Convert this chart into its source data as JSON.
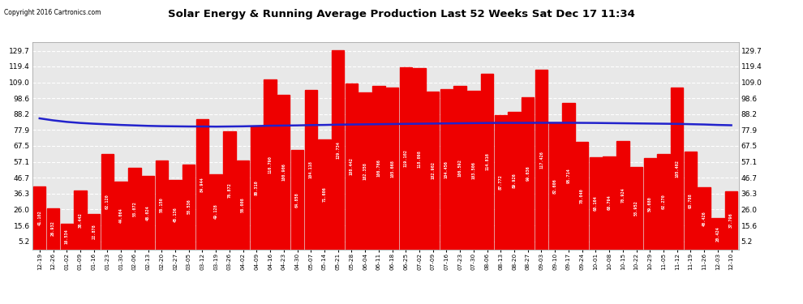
{
  "title": "Solar Energy & Running Average Production Last 52 Weeks Sat Dec 17 11:34",
  "copyright": "Copyright 2016 Cartronics.com",
  "yticks": [
    5.2,
    15.6,
    26.0,
    36.3,
    46.7,
    57.1,
    67.5,
    77.9,
    88.2,
    98.6,
    109.0,
    119.4,
    129.7
  ],
  "bar_color": "#ee0000",
  "avg_line_color": "#2222cc",
  "background_color": "#ffffff",
  "plot_bg_color": "#e8e8e8",
  "grid_color": "#ffffff",
  "categories": [
    "12-19",
    "12-26",
    "01-02",
    "01-09",
    "01-16",
    "01-23",
    "01-30",
    "02-06",
    "02-13",
    "02-20",
    "02-27",
    "03-05",
    "03-12",
    "03-19",
    "03-26",
    "04-02",
    "04-09",
    "04-16",
    "04-23",
    "04-30",
    "05-07",
    "05-14",
    "05-21",
    "05-28",
    "06-04",
    "06-11",
    "06-18",
    "06-25",
    "07-02",
    "07-09",
    "07-16",
    "07-23",
    "07-30",
    "08-06",
    "08-13",
    "08-20",
    "08-27",
    "09-03",
    "09-10",
    "09-17",
    "09-24",
    "10-01",
    "10-08",
    "10-15",
    "10-22",
    "10-29",
    "11-05",
    "11-12",
    "11-19",
    "11-26",
    "12-03",
    "12-10"
  ],
  "weekly_values": [
    41.102,
    26.932,
    16.534,
    38.442,
    22.878,
    62.12,
    44.064,
    53.072,
    48.024,
    58.15,
    45.136,
    55.536,
    84.944,
    49.128,
    76.872,
    58.008,
    80.31,
    110.79,
    100.906,
    64.858,
    104.118,
    71.606,
    129.734,
    108.442,
    102.358,
    106.766,
    105.668,
    119.102,
    118.098,
    102.902,
    104.456,
    106.592,
    103.506,
    114.816,
    87.772,
    89.926,
    99.036,
    117.426,
    82.606,
    95.714,
    70.04,
    60.164,
    60.794,
    70.924,
    53.952,
    59.68,
    62.27,
    105.402,
    63.788,
    40.426,
    20.424,
    37.796
  ],
  "avg_values": [
    85.5,
    84.2,
    83.2,
    82.5,
    82.0,
    81.6,
    81.2,
    80.9,
    80.6,
    80.4,
    80.3,
    80.2,
    80.2,
    80.1,
    80.2,
    80.3,
    80.5,
    80.7,
    80.8,
    80.9,
    81.1,
    81.2,
    81.4,
    81.5,
    81.6,
    81.7,
    81.8,
    81.9,
    82.0,
    82.1,
    82.2,
    82.3,
    82.4,
    82.5,
    82.55,
    82.55,
    82.55,
    82.6,
    82.6,
    82.6,
    82.55,
    82.5,
    82.4,
    82.3,
    82.2,
    82.1,
    82.0,
    81.9,
    81.7,
    81.5,
    81.2,
    81.0
  ],
  "ylim_max": 135
}
